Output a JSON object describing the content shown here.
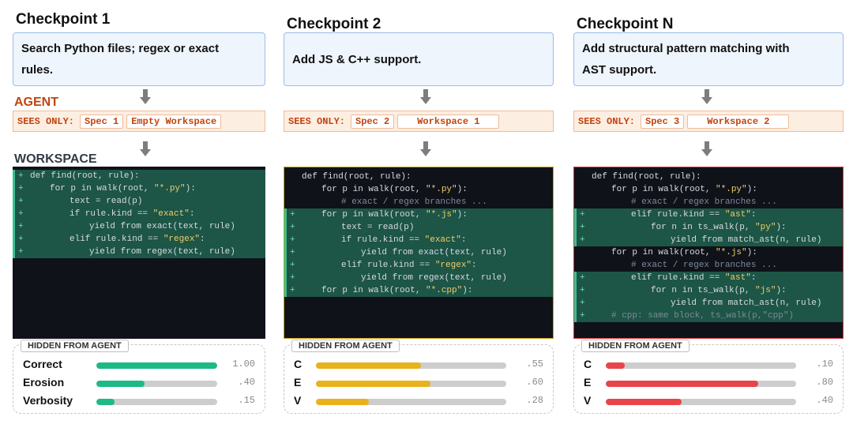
{
  "checkpoints": [
    {
      "title": "Checkpoint 1",
      "spec": [
        "Search Python files; regex or exact",
        "rules."
      ],
      "agent_label": "AGENT",
      "workspace_label": "WORKSPACE",
      "sees_prefix": "SEES ONLY:",
      "sees_chips": [
        "Spec 1",
        "Empty Workspace"
      ],
      "code": [
        {
          "diff": true,
          "indent": 0,
          "parts": [
            {
              "t": "def find(root, rule):"
            }
          ]
        },
        {
          "diff": true,
          "indent": 1,
          "parts": [
            {
              "t": "for p in walk(root, "
            },
            {
              "t": "\"*.py\"",
              "c": "str"
            },
            {
              "t": "):"
            }
          ]
        },
        {
          "diff": true,
          "indent": 2,
          "parts": [
            {
              "t": "text = read(p)"
            }
          ]
        },
        {
          "diff": true,
          "indent": 2,
          "parts": [
            {
              "t": "if rule.kind == "
            },
            {
              "t": "\"exact\"",
              "c": "str"
            },
            {
              "t": ":"
            }
          ]
        },
        {
          "diff": true,
          "indent": 3,
          "parts": [
            {
              "t": "yield from exact(text, rule)"
            }
          ]
        },
        {
          "diff": true,
          "indent": 2,
          "parts": [
            {
              "t": "elif rule.kind == "
            },
            {
              "t": "\"regex\"",
              "c": "str"
            },
            {
              "t": ":"
            }
          ]
        },
        {
          "diff": true,
          "indent": 3,
          "parts": [
            {
              "t": "yield from regex(text, rule)"
            }
          ]
        }
      ],
      "hidden_label": "HIDDEN FROM AGENT",
      "metrics": [
        {
          "label": "Correct",
          "value": 1.0,
          "text": "1.00",
          "color": "#1dba84"
        },
        {
          "label": "Erosion",
          "value": 0.4,
          "text": ".40",
          "color": "#1dba84"
        },
        {
          "label": "Verbosity",
          "value": 0.15,
          "text": ".15",
          "color": "#1dba84"
        }
      ]
    },
    {
      "title": "Checkpoint 2",
      "spec": [
        "Add JS & C++ support."
      ],
      "sees_prefix": "SEES ONLY:",
      "sees_chips": [
        "Spec 2",
        "Workspace 1"
      ],
      "code": [
        {
          "diff": false,
          "indent": 0,
          "parts": [
            {
              "t": "def find(root, rule):"
            }
          ]
        },
        {
          "diff": false,
          "indent": 1,
          "parts": [
            {
              "t": "for p in walk(root, "
            },
            {
              "t": "\"*.py\"",
              "c": "str"
            },
            {
              "t": "):"
            }
          ]
        },
        {
          "diff": false,
          "indent": 2,
          "parts": [
            {
              "t": "# exact / regex branches ...",
              "c": "cmt"
            }
          ]
        },
        {
          "diff": true,
          "indent": 1,
          "parts": [
            {
              "t": "for p in walk(root, "
            },
            {
              "t": "\"*.js\"",
              "c": "str"
            },
            {
              "t": "):"
            }
          ]
        },
        {
          "diff": true,
          "indent": 2,
          "parts": [
            {
              "t": "text = read(p)"
            }
          ]
        },
        {
          "diff": true,
          "indent": 2,
          "parts": [
            {
              "t": "if rule.kind == "
            },
            {
              "t": "\"exact\"",
              "c": "str"
            },
            {
              "t": ":"
            }
          ]
        },
        {
          "diff": true,
          "indent": 3,
          "parts": [
            {
              "t": "yield from exact(text, rule)"
            }
          ]
        },
        {
          "diff": true,
          "indent": 2,
          "parts": [
            {
              "t": "elif rule.kind == "
            },
            {
              "t": "\"regex\"",
              "c": "str"
            },
            {
              "t": ":"
            }
          ]
        },
        {
          "diff": true,
          "indent": 3,
          "parts": [
            {
              "t": "yield from regex(text, rule)"
            }
          ]
        },
        {
          "diff": true,
          "indent": 1,
          "parts": [
            {
              "t": "for p in walk(root, "
            },
            {
              "t": "\"*.cpp\"",
              "c": "str"
            },
            {
              "t": "):"
            }
          ]
        }
      ],
      "hidden_label": "HIDDEN FROM AGENT",
      "metrics": [
        {
          "label": "C",
          "value": 0.55,
          "text": ".55",
          "color": "#e8b21c"
        },
        {
          "label": "E",
          "value": 0.6,
          "text": ".60",
          "color": "#e8b21c"
        },
        {
          "label": "V",
          "value": 0.28,
          "text": ".28",
          "color": "#e8b21c"
        }
      ]
    },
    {
      "title": "Checkpoint N",
      "spec": [
        "Add structural pattern matching with",
        "AST support."
      ],
      "sees_prefix": "SEES ONLY:",
      "sees_chips": [
        "Spec 3",
        "Workspace 2"
      ],
      "code": [
        {
          "diff": false,
          "indent": 0,
          "parts": [
            {
              "t": "def find(root, rule):"
            }
          ]
        },
        {
          "diff": false,
          "indent": 1,
          "parts": [
            {
              "t": "for p in walk(root, "
            },
            {
              "t": "\"*.py\"",
              "c": "str"
            },
            {
              "t": "):"
            }
          ]
        },
        {
          "diff": false,
          "indent": 2,
          "parts": [
            {
              "t": "# exact / regex branches ...",
              "c": "cmt"
            }
          ]
        },
        {
          "diff": true,
          "indent": 2,
          "parts": [
            {
              "t": "elif rule.kind == "
            },
            {
              "t": "\"ast\"",
              "c": "str"
            },
            {
              "t": ":"
            }
          ]
        },
        {
          "diff": true,
          "indent": 3,
          "parts": [
            {
              "t": "for n in ts_walk(p, "
            },
            {
              "t": "\"py\"",
              "c": "str"
            },
            {
              "t": "):"
            }
          ]
        },
        {
          "diff": true,
          "indent": 4,
          "parts": [
            {
              "t": "yield from match_ast(n, rule)"
            }
          ]
        },
        {
          "diff": false,
          "indent": 1,
          "parts": [
            {
              "t": "for p in walk(root, "
            },
            {
              "t": "\"*.js\"",
              "c": "str"
            },
            {
              "t": "):"
            }
          ]
        },
        {
          "diff": false,
          "indent": 2,
          "parts": [
            {
              "t": "# exact / regex branches ...",
              "c": "cmt"
            }
          ]
        },
        {
          "diff": true,
          "indent": 2,
          "parts": [
            {
              "t": "elif rule.kind == "
            },
            {
              "t": "\"ast\"",
              "c": "str"
            },
            {
              "t": ":"
            }
          ]
        },
        {
          "diff": true,
          "indent": 3,
          "parts": [
            {
              "t": "for n in ts_walk(p, "
            },
            {
              "t": "\"js\"",
              "c": "str"
            },
            {
              "t": "):"
            }
          ]
        },
        {
          "diff": true,
          "indent": 4,
          "parts": [
            {
              "t": "yield from match_ast(n, rule)"
            }
          ]
        },
        {
          "diff": true,
          "indent": 1,
          "parts": [
            {
              "t": "# cpp: same block, ts_walk(p,\"cpp\")",
              "c": "cmt"
            }
          ]
        }
      ],
      "hidden_label": "HIDDEN FROM AGENT",
      "metrics": [
        {
          "label": "C",
          "value": 0.1,
          "text": ".10",
          "color": "#e8454a"
        },
        {
          "label": "E",
          "value": 0.8,
          "text": ".80",
          "color": "#e8454a"
        },
        {
          "label": "V",
          "value": 0.4,
          "text": ".40",
          "color": "#e8454a"
        }
      ]
    }
  ]
}
